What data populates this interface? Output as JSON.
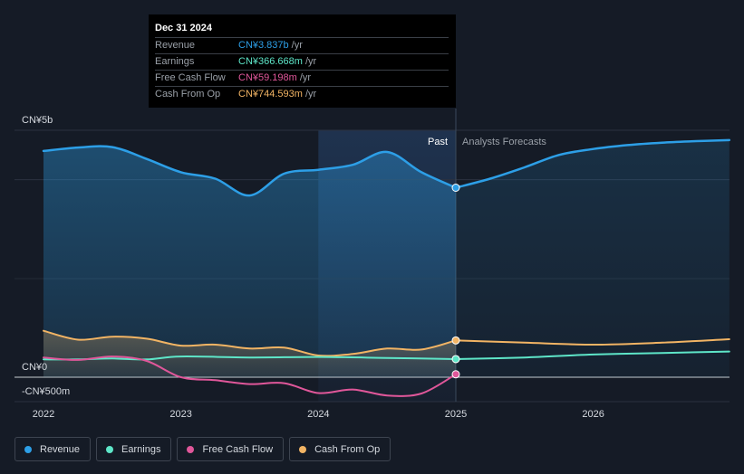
{
  "tooltip": {
    "date": "Dec 31 2024",
    "rows": [
      {
        "label": "Revenue",
        "value": "CN¥3.837b",
        "unit": "/yr",
        "color": "#2d9fe7"
      },
      {
        "label": "Earnings",
        "value": "CN¥366.668m",
        "unit": "/yr",
        "color": "#5ee6c8"
      },
      {
        "label": "Free Cash Flow",
        "value": "CN¥59.198m",
        "unit": "/yr",
        "color": "#e0579a"
      },
      {
        "label": "Cash From Op",
        "value": "CN¥744.593m",
        "unit": "/yr",
        "color": "#f2b464"
      }
    ]
  },
  "legend": [
    {
      "label": "Revenue",
      "color": "#2d9fe7"
    },
    {
      "label": "Earnings",
      "color": "#5ee6c8"
    },
    {
      "label": "Free Cash Flow",
      "color": "#e0579a"
    },
    {
      "label": "Cash From Op",
      "color": "#f2b464"
    }
  ],
  "chart_data": {
    "type": "line",
    "ylabel_top": "CN¥5b",
    "ylabel_zero": "CN¥0",
    "ylabel_bottom": "-CN¥500m",
    "ylim": [
      -500,
      5000
    ],
    "xlim": [
      2022.0,
      2026.99
    ],
    "past_label": "Past",
    "forecast_label": "Analysts Forecasts",
    "divider_x": 2025.0,
    "highlight_start_x": 2024.0,
    "x_ticks": [
      {
        "x": 2022,
        "label": "2022"
      },
      {
        "x": 2023,
        "label": "2023"
      },
      {
        "x": 2024,
        "label": "2024"
      },
      {
        "x": 2025,
        "label": "2025"
      },
      {
        "x": 2026,
        "label": "2026"
      }
    ],
    "gridlines": [
      0,
      4000,
      5000
    ],
    "series": [
      {
        "name": "Revenue",
        "color": "#2d9fe7",
        "fill": true,
        "past": [
          [
            2022.0,
            4580
          ],
          [
            2022.25,
            4650
          ],
          [
            2022.5,
            4660
          ],
          [
            2022.75,
            4420
          ],
          [
            2023.0,
            4150
          ],
          [
            2023.25,
            4020
          ],
          [
            2023.5,
            3680
          ],
          [
            2023.75,
            4120
          ],
          [
            2024.0,
            4200
          ],
          [
            2024.25,
            4300
          ],
          [
            2024.5,
            4560
          ],
          [
            2024.75,
            4150
          ],
          [
            2025.0,
            3837
          ]
        ],
        "forecast": [
          [
            2025.0,
            3837
          ],
          [
            2025.25,
            4020
          ],
          [
            2025.5,
            4250
          ],
          [
            2025.75,
            4500
          ],
          [
            2026.0,
            4620
          ],
          [
            2026.25,
            4700
          ],
          [
            2026.5,
            4750
          ],
          [
            2026.75,
            4780
          ],
          [
            2026.99,
            4800
          ]
        ]
      },
      {
        "name": "Cash From Op",
        "color": "#f2b464",
        "fill": false,
        "past": [
          [
            2022.0,
            940
          ],
          [
            2022.25,
            760
          ],
          [
            2022.5,
            820
          ],
          [
            2022.75,
            780
          ],
          [
            2023.0,
            640
          ],
          [
            2023.25,
            660
          ],
          [
            2023.5,
            580
          ],
          [
            2023.75,
            600
          ],
          [
            2024.0,
            440
          ],
          [
            2024.25,
            470
          ],
          [
            2024.5,
            580
          ],
          [
            2024.75,
            560
          ],
          [
            2025.0,
            745
          ]
        ],
        "forecast": [
          [
            2025.0,
            745
          ],
          [
            2025.5,
            700
          ],
          [
            2026.0,
            660
          ],
          [
            2026.5,
            700
          ],
          [
            2026.99,
            770
          ]
        ]
      },
      {
        "name": "Earnings",
        "color": "#5ee6c8",
        "fill": false,
        "past": [
          [
            2022.0,
            360
          ],
          [
            2022.25,
            360
          ],
          [
            2022.5,
            380
          ],
          [
            2022.75,
            360
          ],
          [
            2023.0,
            420
          ],
          [
            2023.5,
            400
          ],
          [
            2024.0,
            410
          ],
          [
            2024.5,
            390
          ],
          [
            2025.0,
            367
          ]
        ],
        "forecast": [
          [
            2025.0,
            367
          ],
          [
            2025.5,
            400
          ],
          [
            2026.0,
            460
          ],
          [
            2026.5,
            490
          ],
          [
            2026.99,
            520
          ]
        ]
      },
      {
        "name": "Free Cash Flow",
        "color": "#e0579a",
        "fill": false,
        "past": [
          [
            2022.0,
            400
          ],
          [
            2022.25,
            350
          ],
          [
            2022.5,
            420
          ],
          [
            2022.75,
            330
          ],
          [
            2023.0,
            0
          ],
          [
            2023.25,
            -60
          ],
          [
            2023.5,
            -140
          ],
          [
            2023.75,
            -120
          ],
          [
            2024.0,
            -320
          ],
          [
            2024.25,
            -250
          ],
          [
            2024.5,
            -370
          ],
          [
            2024.75,
            -330
          ],
          [
            2025.0,
            59
          ]
        ],
        "forecast": []
      }
    ]
  }
}
